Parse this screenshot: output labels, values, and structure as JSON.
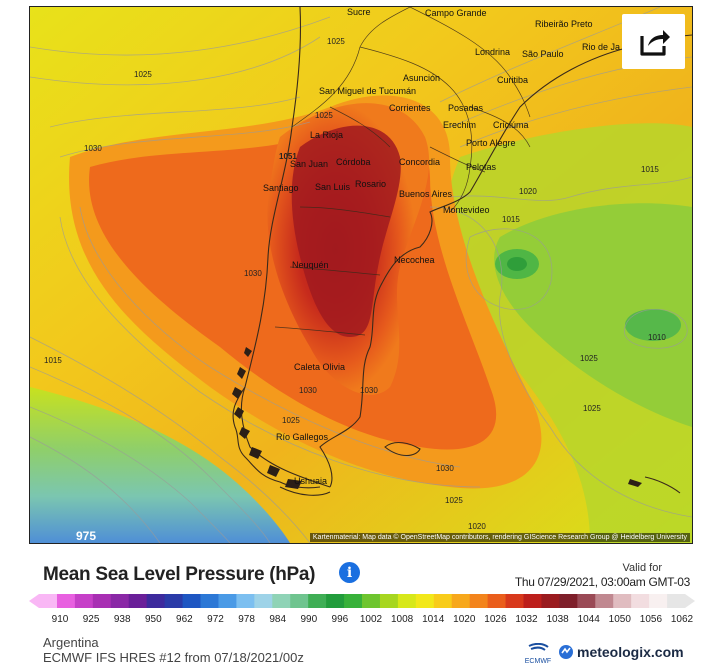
{
  "map": {
    "attribution": "Kartenmaterial: Map data © OpenStreetMap contributors, rendering GIScience Research Group @ Heidelberg University",
    "corner_label": "975",
    "cities": [
      "Sucre",
      "Campo Grande",
      "Ribeirão Preto",
      "Rio de Ja",
      "Londrina",
      "São Paulo",
      "Curitiba",
      "Asunción",
      "San Miguel de Tucumán",
      "Corrientes",
      "Posadas",
      "Erechim",
      "Criciúma",
      "La Rioja",
      "Porto Alegre",
      "San Juan",
      "Córdoba",
      "Concordia",
      "Pelotas",
      "Santiago",
      "San Luis",
      "Rosario",
      "Buenos Aires",
      "Montevideo",
      "Neuquén",
      "Necochea",
      "Caleta Olivia",
      "Río Gallegos",
      "Ushuaia"
    ],
    "isobar_labels": [
      "1025",
      "1025",
      "1030",
      "1051",
      "1025",
      "1020",
      "1015",
      "1030",
      "1015",
      "1010",
      "1015",
      "1030",
      "1030",
      "1025",
      "1025",
      "1025",
      "1030",
      "1025",
      "1020"
    ]
  },
  "header": {
    "title": "Mean Sea Level Pressure (hPa)",
    "info_icon": "info-icon",
    "valid_label": "Valid for",
    "valid_time": "Thu 07/29/2021, 03:00am GMT-03"
  },
  "scale": {
    "ticks": [
      "910",
      "925",
      "938",
      "950",
      "962",
      "972",
      "978",
      "984",
      "990",
      "996",
      "1002",
      "1008",
      "1014",
      "1020",
      "1026",
      "1032",
      "1038",
      "1044",
      "1050",
      "1056",
      "1062"
    ],
    "colors": [
      "#f9b7f5",
      "#e860e0",
      "#c640c8",
      "#a82fb3",
      "#8a28a6",
      "#6a1f99",
      "#3d2a9d",
      "#2a3ba8",
      "#1e56c2",
      "#2c78d6",
      "#4a9ae6",
      "#7cbff0",
      "#9ed3e8",
      "#8fd3b6",
      "#6fc48f",
      "#3fae55",
      "#229c3c",
      "#38b13a",
      "#6ec52f",
      "#a7d620",
      "#d7e81a",
      "#f2e81a",
      "#f8cc1a",
      "#f7a81c",
      "#f3841c",
      "#ea5e1c",
      "#d8391c",
      "#bd1f1c",
      "#9a1b1f",
      "#7e1f2a",
      "#9a4a56",
      "#c08890",
      "#e0bcc0",
      "#f2dde0",
      "#f8f0f0",
      "#e6e6e6"
    ]
  },
  "footer": {
    "region": "Argentina",
    "model": "ECMWF IFS HRES #12 from 07/18/2021/00z",
    "ecmwf_label": "ECMWF",
    "brand": "meteologix.com"
  }
}
